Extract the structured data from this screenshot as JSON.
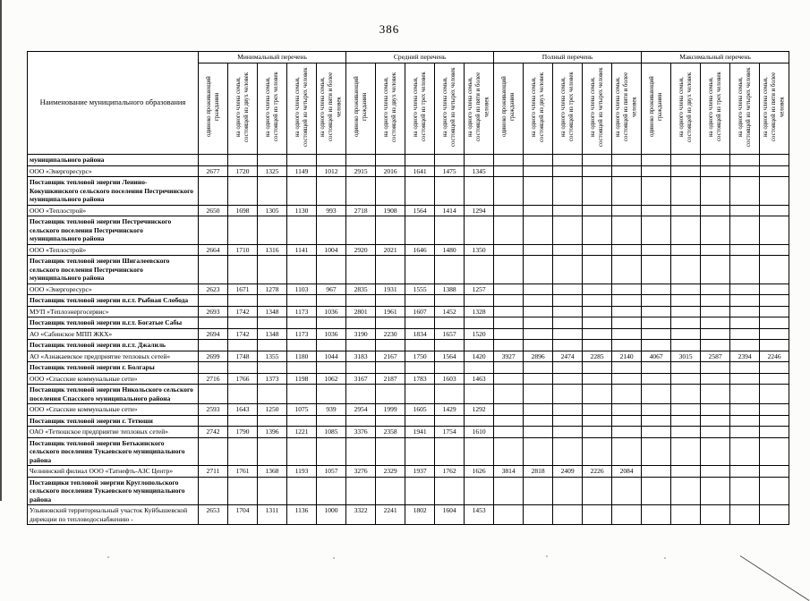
{
  "page": {
    "number": "386"
  },
  "table": {
    "name_column_header": "Наименование муниципального образования",
    "groups": [
      "Минимальный перечень",
      "Средний перечень",
      "Полный перечень",
      "Максимальный перечень"
    ],
    "per_group_columns": [
      "одиноко проживающий гражданин",
      "на одного члена семьи, состоящей из двух человек",
      "на одного члена семьи, состоящей из трех человек",
      "на одного члена семьи, состоящей из четырех человек",
      "на одного члена семьи, состоящей из пяти и более человек"
    ],
    "rows": [
      {
        "name": "муниципального района",
        "type": "section",
        "values": []
      },
      {
        "name": "ООО «Энергоресурс»",
        "type": "data",
        "values": [
          "2677",
          "1720",
          "1325",
          "1149",
          "1012",
          "2915",
          "2016",
          "1641",
          "1475",
          "1345"
        ]
      },
      {
        "name": "Поставщик тепловой энергии Ленино-Кокушкинского сельского поселения Пестречинского муниципального района",
        "type": "section",
        "values": []
      },
      {
        "name": "ООО «Теплострой»",
        "type": "data",
        "values": [
          "2650",
          "1698",
          "1305",
          "1130",
          "993",
          "2718",
          "1908",
          "1564",
          "1414",
          "1294"
        ]
      },
      {
        "name": "Поставщик тепловой энергии Пестречинского сельского поселения Пестречинского муниципального района",
        "type": "section",
        "values": []
      },
      {
        "name": "ООО «Теплострой»",
        "type": "data",
        "values": [
          "2664",
          "1710",
          "1316",
          "1141",
          "1004",
          "2920",
          "2021",
          "1646",
          "1480",
          "1350"
        ]
      },
      {
        "name": "Поставщик тепловой энергии Шигалеевского сельского поселения Пестречинского муниципального района",
        "type": "section",
        "values": []
      },
      {
        "name": "ООО «Энергоресурс»",
        "type": "data",
        "values": [
          "2623",
          "1671",
          "1278",
          "1103",
          "967",
          "2835",
          "1931",
          "1555",
          "1388",
          "1257"
        ]
      },
      {
        "name": "Поставщик тепловой энергии п.г.т. Рыбная Слобода",
        "type": "section",
        "values": []
      },
      {
        "name": "МУП «Теплоэнергосервис»",
        "type": "data",
        "values": [
          "2693",
          "1742",
          "1348",
          "1173",
          "1036",
          "2801",
          "1961",
          "1607",
          "1452",
          "1328"
        ]
      },
      {
        "name": "Поставщик тепловой энергии п.г.т. Богатые Сабы",
        "type": "section",
        "values": []
      },
      {
        "name": "АО «Сабинское МПП ЖКХ»",
        "type": "data",
        "values": [
          "2694",
          "1742",
          "1348",
          "1173",
          "1036",
          "3190",
          "2230",
          "1834",
          "1657",
          "1520"
        ]
      },
      {
        "name": "Поставщик тепловой энергии п.г.т. Джалиль",
        "type": "section",
        "values": []
      },
      {
        "name": "АО «Азнакаевское предприятие тепловых сетей»",
        "type": "data",
        "values": [
          "2699",
          "1748",
          "1355",
          "1180",
          "1044",
          "3183",
          "2167",
          "1750",
          "1564",
          "1420",
          "3927",
          "2896",
          "2474",
          "2285",
          "2140",
          "4067",
          "3015",
          "2587",
          "2394",
          "2246"
        ]
      },
      {
        "name": "Поставщик тепловой энергии г. Болгары",
        "type": "section",
        "values": []
      },
      {
        "name": "ООО «Спасские коммунальные сети»",
        "type": "data",
        "values": [
          "2716",
          "1766",
          "1373",
          "1198",
          "1062",
          "3167",
          "2187",
          "1783",
          "1603",
          "1463"
        ]
      },
      {
        "name": "Поставщик тепловой энергии Никольского сельского поселения Спасского муниципального района",
        "type": "section",
        "values": []
      },
      {
        "name": "ООО «Спасские коммунальные сети»",
        "type": "data",
        "values": [
          "2593",
          "1643",
          "1250",
          "1075",
          "939",
          "2954",
          "1999",
          "1605",
          "1429",
          "1292"
        ]
      },
      {
        "name": "Поставщик тепловой энергии г. Тетюши",
        "type": "section",
        "values": []
      },
      {
        "name": "ОАО «Тетюшское предприятие тепловых сетей»",
        "type": "data",
        "values": [
          "2742",
          "1790",
          "1396",
          "1221",
          "1085",
          "3376",
          "2358",
          "1941",
          "1754",
          "1610"
        ]
      },
      {
        "name": "Поставщик тепловой энергии Бетькинского сельского поселения Тукаевского муниципального района",
        "type": "section",
        "values": []
      },
      {
        "name": "Челнинский филиал ООО «Татнефть-АЗС Центр»",
        "type": "data",
        "values": [
          "2711",
          "1761",
          "1368",
          "1193",
          "1057",
          "3276",
          "2329",
          "1937",
          "1762",
          "1626",
          "3814",
          "2818",
          "2409",
          "2226",
          "2084"
        ]
      },
      {
        "name": "Поставщики тепловой энергии Круглопольского сельского поселения Тукаевского муниципального района",
        "type": "section",
        "values": []
      },
      {
        "name": "Ульяновский территориальный участок Куйбышевской дирекции по тепловодоснабжению -",
        "type": "data",
        "values": [
          "2653",
          "1704",
          "1311",
          "1136",
          "1000",
          "3322",
          "2241",
          "1802",
          "1604",
          "1453"
        ]
      }
    ]
  }
}
